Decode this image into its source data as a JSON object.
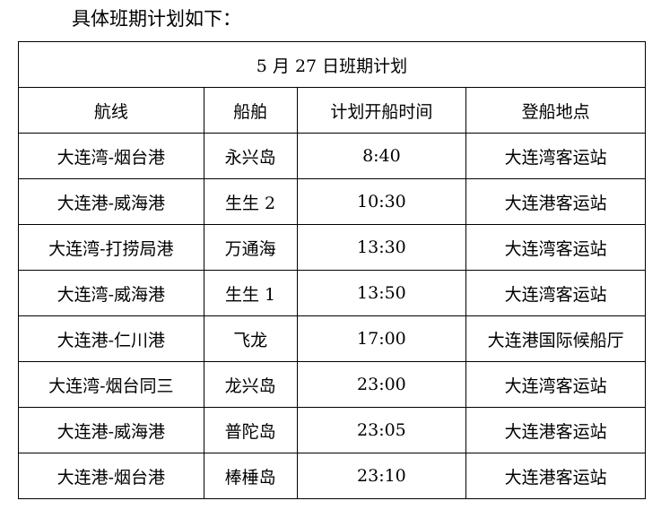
{
  "intro": "具体班期计划如下：",
  "table": {
    "title": "5 月 27 日班期计划",
    "headers": [
      "航线",
      "船舶",
      "计划开船时间",
      "登船地点"
    ],
    "rows": [
      [
        "大连湾-烟台港",
        "永兴岛",
        "8:40",
        "大连湾客运站"
      ],
      [
        "大连港-威海港",
        "生生 2",
        "10:30",
        "大连港客运站"
      ],
      [
        "大连湾-打捞局港",
        "万通海",
        "13:30",
        "大连湾客运站"
      ],
      [
        "大连湾-威海港",
        "生生 1",
        "13:50",
        "大连湾客运站"
      ],
      [
        "大连港-仁川港",
        "飞龙",
        "17:00",
        "大连港国际候船厅"
      ],
      [
        "大连湾-烟台同三",
        "龙兴岛",
        "23:00",
        "大连湾客运站"
      ],
      [
        "大连港-威海港",
        "普陀岛",
        "23:05",
        "大连港客运站"
      ],
      [
        "大连港-烟台港",
        "棒棰岛",
        "23:10",
        "大连港客运站"
      ]
    ]
  }
}
